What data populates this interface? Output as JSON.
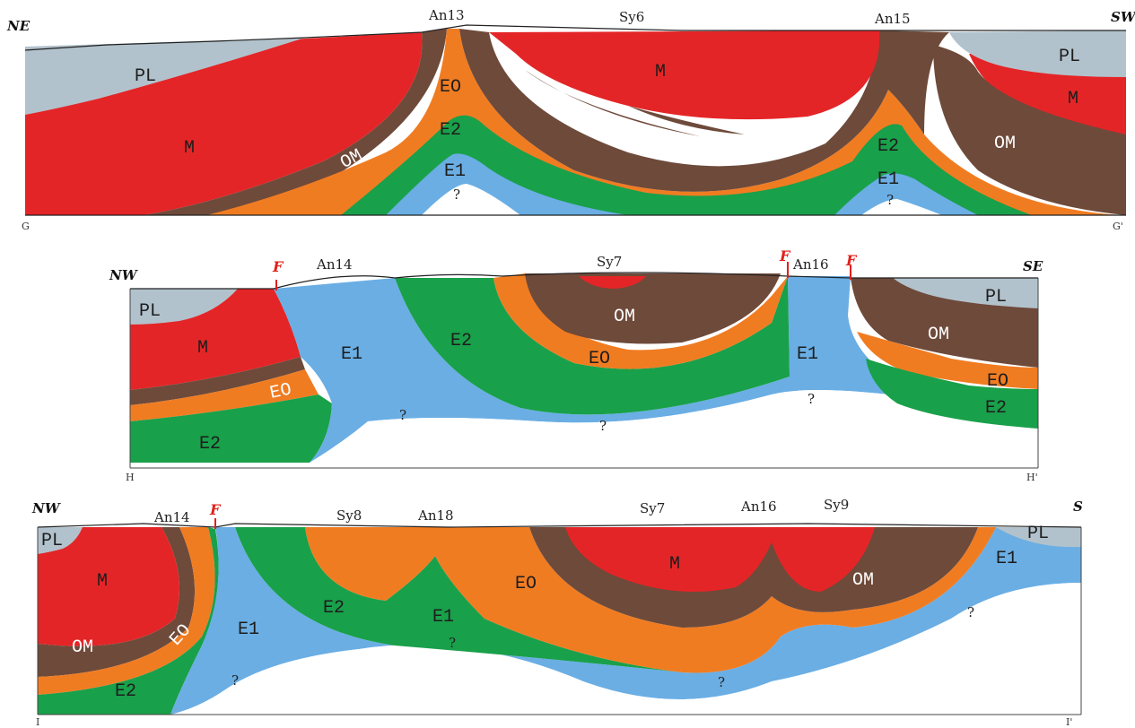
{
  "colors": {
    "PL": "#b2c2cc",
    "M": "#e42527",
    "OM": "#6e4a3a",
    "EO": "#f07c22",
    "E2": "#19a04a",
    "E1": "#6aaee4"
  },
  "section1": {
    "dir_left": "NE",
    "dir_right": "SW",
    "end_left": "G",
    "end_right": "G'",
    "headers": [
      "An13",
      "Sy6",
      "An15"
    ],
    "unit_labels": {
      "pl_left": "PL",
      "pl_right": "PL",
      "m_left": "M",
      "m_center": "M",
      "m_right": "M",
      "om_left": "OM",
      "om_center": "OM",
      "om_right": "OM",
      "eo": "EO",
      "e2_left": "E2",
      "e2_right": "E2",
      "e1_left": "E1",
      "e1_right": "E1"
    },
    "unknowns": [
      "?",
      "?"
    ]
  },
  "section2": {
    "dir_left": "NW",
    "dir_right": "SE",
    "end_left": "H",
    "end_right": "H'",
    "headers": [
      "An14",
      "Sy7",
      "An16"
    ],
    "faults": [
      "F",
      "F",
      "F"
    ],
    "unit_labels": {
      "pl_left": "PL",
      "pl_right": "PL",
      "m_left": "M",
      "eo_left": "EO",
      "e2_left": "E2",
      "e1_left": "E1",
      "e2_center": "E2",
      "om_center": "OM",
      "eo_center": "EO",
      "e1_right": "E1",
      "om_right": "OM",
      "eo_right": "EO",
      "e2_right": "E2"
    },
    "unknowns": [
      "?",
      "?",
      "?"
    ]
  },
  "section3": {
    "dir_left": "NW",
    "dir_right": "S",
    "end_left": "I",
    "end_right": "I'",
    "headers": [
      "An14",
      "Sy8",
      "An18",
      "Sy7",
      "An16",
      "Sy9"
    ],
    "faults": [
      "F"
    ],
    "unit_labels": {
      "pl_left": "PL",
      "m_left": "M",
      "om_left": "OM",
      "eo_left": "EO",
      "e2_left": "E2",
      "e1_left": "E1",
      "e2_center": "E2",
      "e1_center": "E1",
      "eo_center": "EO",
      "m_right": "M",
      "om_right": "OM",
      "e1_right": "E1",
      "pl_right": "PL"
    },
    "unknowns": [
      "?",
      "?",
      "?",
      "?"
    ]
  }
}
